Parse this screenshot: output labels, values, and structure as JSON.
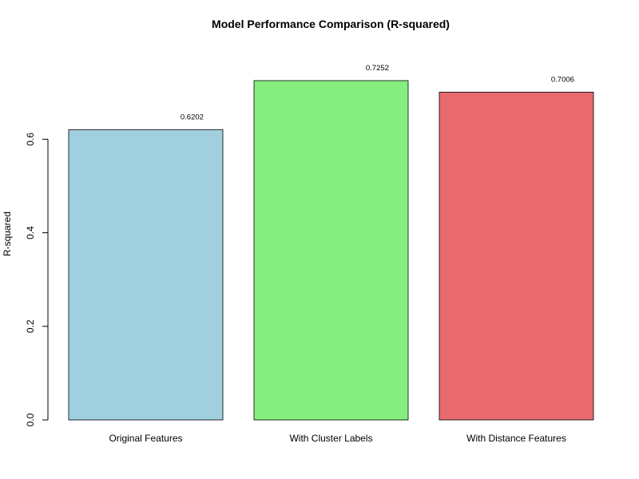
{
  "chart_data": {
    "type": "bar",
    "title": "Model Performance Comparison (R-squared)",
    "xlabel": "",
    "ylabel": "R-squared",
    "categories": [
      "Original Features",
      "With Cluster Labels",
      "With Distance Features"
    ],
    "values": [
      0.6202,
      0.7252,
      0.7006
    ],
    "value_labels": [
      "0.6202",
      "0.7252",
      "0.7006"
    ],
    "colors": [
      "#a0cfe0",
      "#84ee7e",
      "#e96a6e"
    ],
    "ylim": [
      0,
      0.7252
    ],
    "yticks": [
      0.0,
      0.2,
      0.4,
      0.6
    ],
    "ytick_labels": [
      "0.0",
      "0.2",
      "0.4",
      "0.6"
    ],
    "grid": false,
    "legend": "none"
  }
}
